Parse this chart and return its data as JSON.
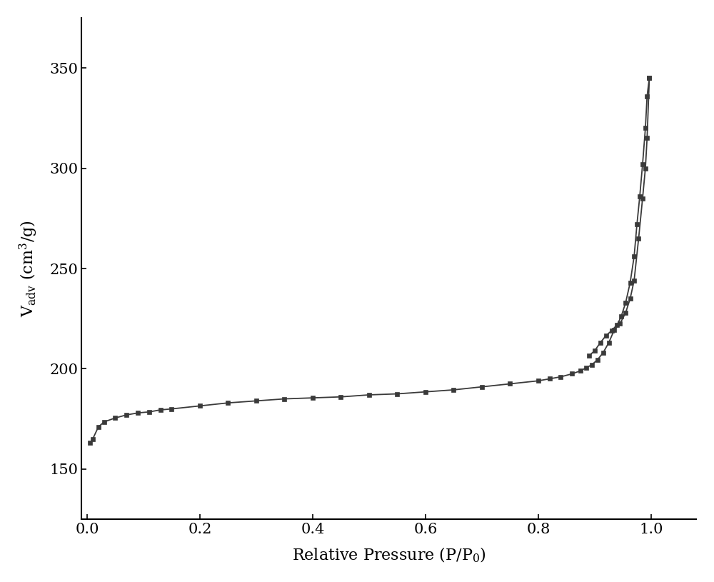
{
  "adsorption_x": [
    0.005,
    0.01,
    0.02,
    0.03,
    0.05,
    0.07,
    0.09,
    0.11,
    0.13,
    0.15,
    0.2,
    0.25,
    0.3,
    0.35,
    0.4,
    0.45,
    0.5,
    0.55,
    0.6,
    0.65,
    0.7,
    0.75,
    0.8,
    0.82,
    0.84,
    0.86,
    0.875,
    0.885,
    0.895,
    0.905,
    0.915,
    0.925,
    0.935,
    0.945,
    0.955,
    0.963,
    0.97,
    0.978,
    0.985,
    0.99,
    0.993,
    0.997
  ],
  "adsorption_y": [
    163.0,
    165.0,
    171.0,
    173.5,
    175.5,
    177.0,
    178.0,
    178.5,
    179.5,
    180.0,
    181.5,
    183.0,
    184.0,
    185.0,
    185.5,
    186.0,
    187.0,
    187.5,
    188.5,
    189.5,
    191.0,
    192.5,
    194.0,
    195.0,
    196.0,
    197.5,
    199.0,
    200.5,
    202.0,
    204.5,
    208.0,
    213.0,
    219.5,
    222.5,
    228.0,
    235.0,
    244.0,
    265.0,
    285.0,
    300.0,
    315.0,
    345.0
  ],
  "desorption_x": [
    0.997,
    0.993,
    0.99,
    0.985,
    0.98,
    0.975,
    0.97,
    0.963,
    0.955,
    0.947,
    0.94,
    0.93,
    0.92,
    0.91,
    0.9,
    0.89
  ],
  "desorption_y": [
    345.0,
    336.0,
    320.0,
    302.0,
    286.0,
    272.0,
    256.0,
    243.0,
    233.0,
    226.0,
    222.0,
    219.0,
    216.5,
    213.0,
    209.0,
    206.5
  ],
  "color": "#3a3a3a",
  "marker": "s",
  "markersize": 5,
  "linewidth": 1.3,
  "xlim": [
    -0.01,
    1.08
  ],
  "ylim": [
    125,
    375
  ],
  "yticks": [
    150,
    200,
    250,
    300,
    350
  ],
  "xticks": [
    0.0,
    0.2,
    0.4,
    0.6,
    0.8,
    1.0
  ],
  "background_color": "#ffffff",
  "label_fontsize": 16,
  "tick_fontsize": 15
}
